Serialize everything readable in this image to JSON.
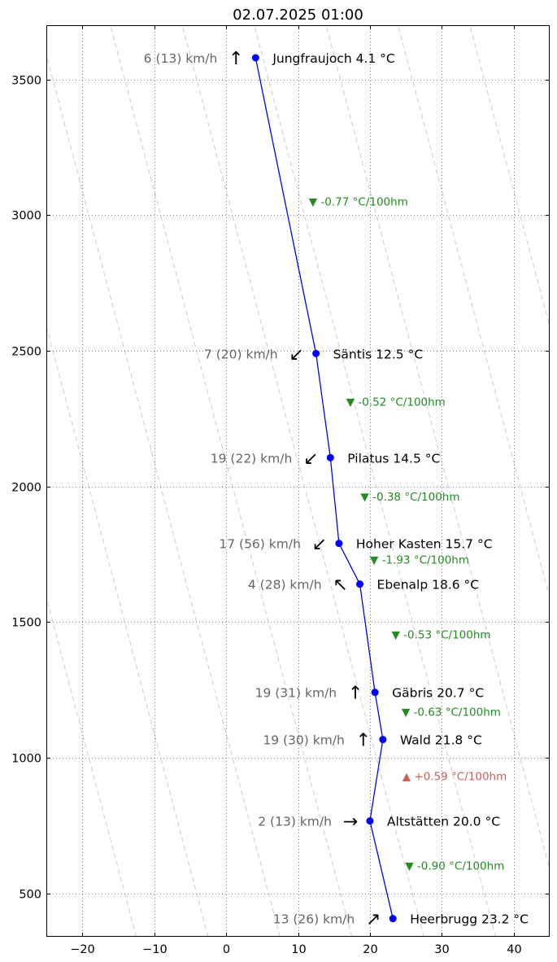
{
  "chart_data": {
    "type": "line",
    "title": "02.07.2025 01:00",
    "xlabel": "",
    "ylabel": "",
    "xlim": [
      -25,
      45
    ],
    "ylim": [
      340,
      3700
    ],
    "xticks": [
      -20,
      -10,
      0,
      10,
      20,
      30,
      40
    ],
    "xtick_labels": [
      "−20",
      "−10",
      "0",
      "10",
      "20",
      "30",
      "40"
    ],
    "yticks": [
      500,
      1000,
      1500,
      2000,
      2500,
      3000,
      3500
    ],
    "ytick_labels": [
      "500",
      "1000",
      "1500",
      "2000",
      "2500",
      "3000",
      "3500"
    ],
    "grid": true,
    "series_color": "#0000ff",
    "dry_adiabats": {
      "lapse_rate_per_100m": -1.0,
      "base_altitude": 340,
      "base_temperatures_at_ylim_min": [
        -12.5,
        -2.5,
        7.5,
        17.5,
        27.5,
        37.5,
        47.5,
        57.5,
        67.5
      ]
    },
    "stations": [
      {
        "name": "Jungfraujoch",
        "altitude": 3580,
        "temperature": 4.1,
        "label": "Jungfraujoch 4.1 °C",
        "wind_label": "6 (13) km/h",
        "wind_arrow": "↑"
      },
      {
        "name": "Säntis",
        "altitude": 2490,
        "temperature": 12.5,
        "label": "Säntis 12.5 °C",
        "wind_label": "7 (20) km/h",
        "wind_arrow": "↙"
      },
      {
        "name": "Pilatus",
        "altitude": 2106,
        "temperature": 14.5,
        "label": "Pilatus 14.5 °C",
        "wind_label": "19 (22) km/h",
        "wind_arrow": "↙"
      },
      {
        "name": "Hoher Kasten",
        "altitude": 1790,
        "temperature": 15.7,
        "label": "Hoher Kasten 15.7 °C",
        "wind_label": "17 (56) km/h",
        "wind_arrow": "↙"
      },
      {
        "name": "Ebenalp",
        "altitude": 1640,
        "temperature": 18.6,
        "label": "Ebenalp 18.6 °C",
        "wind_label": "4 (28) km/h",
        "wind_arrow": "↖"
      },
      {
        "name": "Gäbris",
        "altitude": 1241,
        "temperature": 20.7,
        "label": "Gäbris 20.7 °C",
        "wind_label": "19 (31) km/h",
        "wind_arrow": "↑"
      },
      {
        "name": "Wald",
        "altitude": 1067,
        "temperature": 21.8,
        "label": "Wald 21.8 °C",
        "wind_label": "19 (30) km/h",
        "wind_arrow": "↑"
      },
      {
        "name": "Altstätten",
        "altitude": 767,
        "temperature": 20.0,
        "label": "Altstätten 20.0 °C",
        "wind_label": "2 (13) km/h",
        "wind_arrow": "→"
      },
      {
        "name": "Heerbrugg",
        "altitude": 407,
        "temperature": 23.2,
        "label": "Heerbrugg 23.2 °C",
        "wind_label": "13 (26) km/h",
        "wind_arrow": "↗"
      }
    ],
    "gradients": [
      {
        "text": "▼ -0.77 °C/100hm",
        "sign": "negative",
        "x": 11.5,
        "y": 3035
      },
      {
        "text": "▼ -0.52 °C/100hm",
        "sign": "negative",
        "x": 16.7,
        "y": 2297
      },
      {
        "text": "▼ -0.38 °C/100hm",
        "sign": "negative",
        "x": 18.7,
        "y": 1948
      },
      {
        "text": "▼ -1.93 °C/100hm",
        "sign": "negative",
        "x": 20.0,
        "y": 1715
      },
      {
        "text": "▼ -0.53 °C/100hm",
        "sign": "negative",
        "x": 23.0,
        "y": 1440
      },
      {
        "text": "▼ -0.63 °C/100hm",
        "sign": "negative",
        "x": 24.4,
        "y": 1154
      },
      {
        "text": "▲ +0.59 °C/100hm",
        "sign": "positive",
        "x": 24.5,
        "y": 917
      },
      {
        "text": "▼ -0.90 °C/100hm",
        "sign": "negative",
        "x": 24.9,
        "y": 587
      }
    ],
    "colors": {
      "negative": "#228b22",
      "positive": "#cd5c5c",
      "wind_text": "#666666",
      "adiabat": "#cccccc",
      "grid": "#555555"
    }
  }
}
